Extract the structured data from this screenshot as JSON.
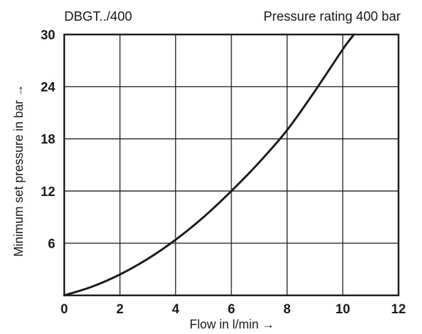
{
  "chart_data": {
    "type": "line",
    "header_left": "DBGT../400",
    "header_right": "Pressure rating 400 bar",
    "xlabel": "Flow in l/min →",
    "ylabel": "Minimum set pressure in bar →",
    "xlim": [
      0,
      12
    ],
    "ylim": [
      0,
      30
    ],
    "x_ticks": [
      0,
      2,
      4,
      6,
      8,
      10,
      12
    ],
    "y_ticks": [
      6,
      12,
      18,
      24,
      30
    ],
    "y_zero_label": "0",
    "grid": true,
    "series": [
      {
        "color": "#1a1a1a",
        "points": [
          {
            "x": 0.0,
            "y": 0.0
          },
          {
            "x": 1.0,
            "y": 1.0
          },
          {
            "x": 2.0,
            "y": 2.4
          },
          {
            "x": 3.0,
            "y": 4.2
          },
          {
            "x": 4.0,
            "y": 6.4
          },
          {
            "x": 5.0,
            "y": 9.0
          },
          {
            "x": 6.0,
            "y": 12.0
          },
          {
            "x": 7.0,
            "y": 15.3
          },
          {
            "x": 8.0,
            "y": 19.0
          },
          {
            "x": 9.0,
            "y": 23.5
          },
          {
            "x": 10.0,
            "y": 28.3
          },
          {
            "x": 10.4,
            "y": 30.0
          }
        ]
      }
    ]
  }
}
